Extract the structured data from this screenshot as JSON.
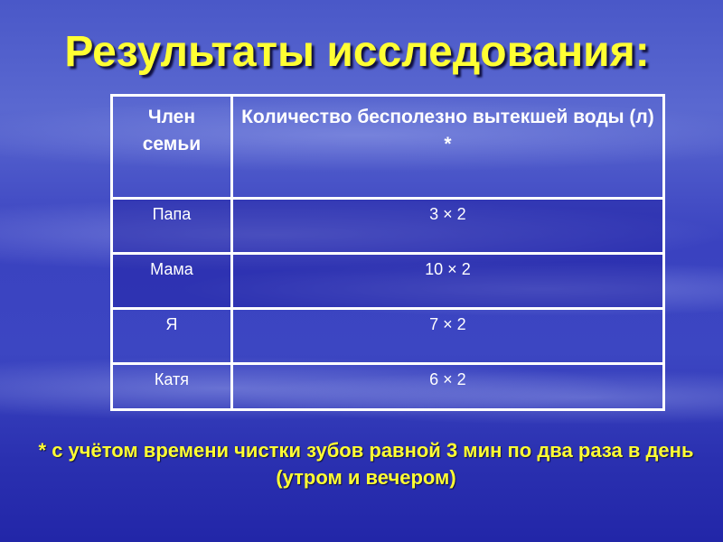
{
  "title": "Результаты исследования:",
  "table": {
    "headers": [
      "Член семьи",
      "Количество бесполезно вытекшей воды (л) *"
    ],
    "rows": [
      [
        "Папа",
        "3 × 2"
      ],
      [
        "Мама",
        "10 × 2"
      ],
      [
        "Я",
        "7 × 2"
      ],
      [
        "Катя",
        "6 × 2"
      ]
    ]
  },
  "footnote": "* с учётом времени чистки зубов  равной 3 мин по два раза в день (утром и вечером)",
  "colors": {
    "title": "#ffff33",
    "background": "#3a42c0"
  }
}
